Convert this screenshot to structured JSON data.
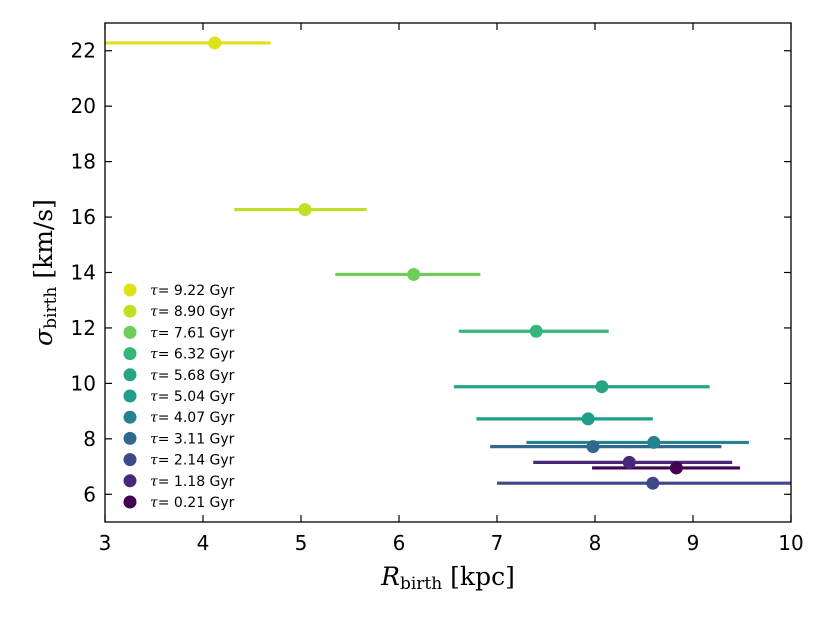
{
  "chart_data": {
    "type": "scatter",
    "title": "",
    "xlabel": {
      "symbol": "R",
      "subscript": "birth",
      "unit": "[kpc]"
    },
    "ylabel": {
      "symbol": "σ",
      "subscript": "birth",
      "unit": "[km/s]"
    },
    "xlim": [
      3,
      10
    ],
    "ylim": [
      5,
      23
    ],
    "xticks": [
      3,
      4,
      5,
      6,
      7,
      8,
      9,
      10
    ],
    "yticks": [
      6,
      8,
      10,
      12,
      14,
      16,
      18,
      20,
      22
    ],
    "grid": false,
    "legend_position": "lower-left",
    "legend_symbol": "τ",
    "legend_unit": "Gyr",
    "series": [
      {
        "name": "τ= 0.21 Gyr",
        "age": "0.21",
        "x": 8.83,
        "y": 6.95,
        "xerr": [
          7.97,
          9.48
        ],
        "color": "#440154"
      },
      {
        "name": "τ= 1.18 Gyr",
        "age": "1.18",
        "x": 8.35,
        "y": 7.15,
        "xerr": [
          7.37,
          9.4
        ],
        "color": "#482878"
      },
      {
        "name": "τ= 2.14 Gyr",
        "age": "2.14",
        "x": 8.59,
        "y": 6.4,
        "xerr": [
          7.0,
          10.0
        ],
        "color": "#3e4989"
      },
      {
        "name": "τ= 3.11 Gyr",
        "age": "3.11",
        "x": 7.98,
        "y": 7.72,
        "xerr": [
          6.93,
          9.29
        ],
        "color": "#31688e"
      },
      {
        "name": "τ= 4.07 Gyr",
        "age": "4.07",
        "x": 8.6,
        "y": 7.87,
        "xerr": [
          7.3,
          9.57
        ],
        "color": "#26828e"
      },
      {
        "name": "τ= 5.04 Gyr",
        "age": "5.04",
        "x": 7.93,
        "y": 8.72,
        "xerr": [
          6.79,
          8.59
        ],
        "color": "#1f9e89"
      },
      {
        "name": "τ= 5.68 Gyr",
        "age": "5.68",
        "x": 8.07,
        "y": 9.88,
        "xerr": [
          6.56,
          9.17
        ],
        "color": "#25a584"
      },
      {
        "name": "τ= 6.32 Gyr",
        "age": "6.32",
        "x": 7.4,
        "y": 11.88,
        "xerr": [
          6.61,
          8.14
        ],
        "color": "#35b779"
      },
      {
        "name": "τ= 7.61 Gyr",
        "age": "7.61",
        "x": 6.15,
        "y": 13.93,
        "xerr": [
          5.35,
          6.83
        ],
        "color": "#6ece58"
      },
      {
        "name": "τ= 8.90 Gyr",
        "age": "8.90",
        "x": 5.04,
        "y": 16.27,
        "xerr": [
          4.32,
          5.67
        ],
        "color": "#c2df23"
      },
      {
        "name": "τ= 9.22 Gyr",
        "age": "9.22",
        "x": 4.12,
        "y": 22.28,
        "xerr": [
          3.0,
          4.69
        ],
        "color": "#dde318"
      }
    ],
    "legend_order": [
      "9.22",
      "8.90",
      "7.61",
      "6.32",
      "5.68",
      "5.04",
      "4.07",
      "3.11",
      "2.14",
      "1.18",
      "0.21"
    ]
  }
}
